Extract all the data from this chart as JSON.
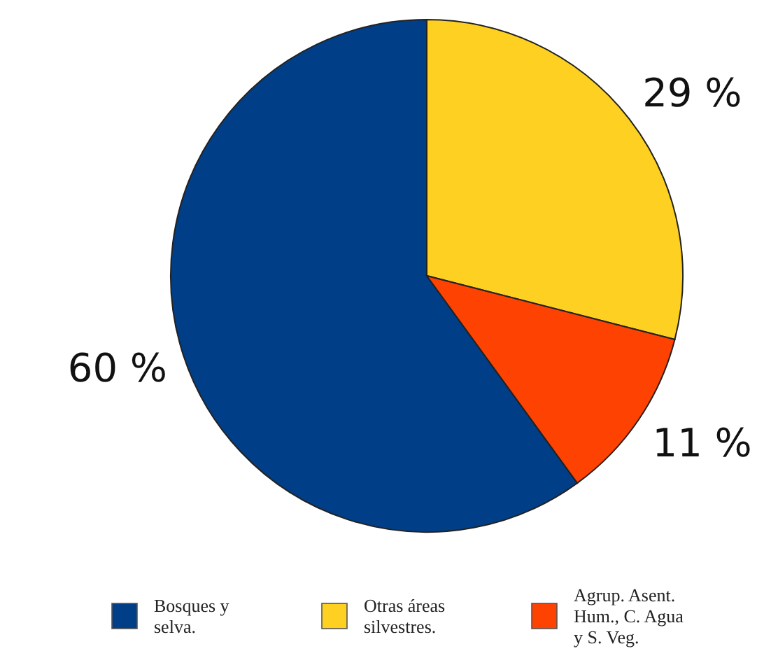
{
  "chart_data": {
    "type": "pie",
    "categories": [
      "Bosques y selva.",
      "Otras áreas silvestres.",
      "Agrup. Asent. Hum., C. Agua y S. Veg."
    ],
    "values": [
      60,
      29,
      11
    ],
    "colors": [
      "#003f87",
      "#fdd021",
      "#fe4202"
    ],
    "value_labels": [
      "60 %",
      "29 %",
      "11 %"
    ],
    "legend": "bottom"
  }
}
